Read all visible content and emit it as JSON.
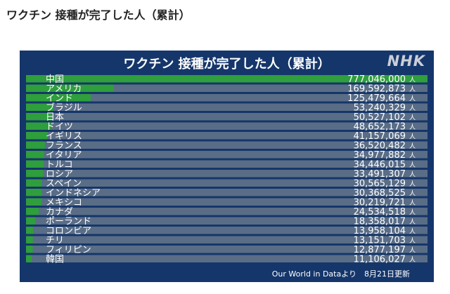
{
  "page": {
    "heading": "ワクチン 接種が完了した人（累計）"
  },
  "panel": {
    "title": "ワクチン 接種が完了した人（累計）",
    "logo": "NHK",
    "source": "Our World in Dataより　8月21日更新"
  },
  "colors": {
    "panel_bg": "#15366b",
    "track": "#5a6d86",
    "bar": "#2f9e3c",
    "text": "#ffffff"
  },
  "chart_data": {
    "type": "bar",
    "orientation": "horizontal",
    "title": "ワクチン 接種が完了した人（累計）",
    "unit": "人",
    "categories": [
      "中国",
      "アメリカ",
      "インド",
      "ブラジル",
      "日本",
      "ドイツ",
      "イギリス",
      "フランス",
      "イタリア",
      "トルコ",
      "ロシア",
      "スペイン",
      "インドネシア",
      "メキシコ",
      "カナダ",
      "ポーランド",
      "コロンビア",
      "チリ",
      "フィリピン",
      "韓国"
    ],
    "values": [
      777046000,
      169592873,
      125479664,
      53240329,
      50527102,
      48652173,
      41157069,
      36520482,
      34977882,
      34446015,
      33491307,
      30565129,
      30368525,
      30219721,
      24534518,
      18358017,
      13958104,
      13151703,
      12877197,
      11106027
    ],
    "value_labels": [
      "777,046,000",
      "169,592,873",
      "125,479,664",
      "53,240,329",
      "50,527,102",
      "48,652,173",
      "41,157,069",
      "36,520,482",
      "34,977,882",
      "34,446,015",
      "33,491,307",
      "30,565,129",
      "30,368,525",
      "30,219,721",
      "24,534,518",
      "18,358,017",
      "13,958,104",
      "13,151,703",
      "12,877,197",
      "11,106,027"
    ],
    "xlim": [
      0,
      777046000
    ]
  }
}
